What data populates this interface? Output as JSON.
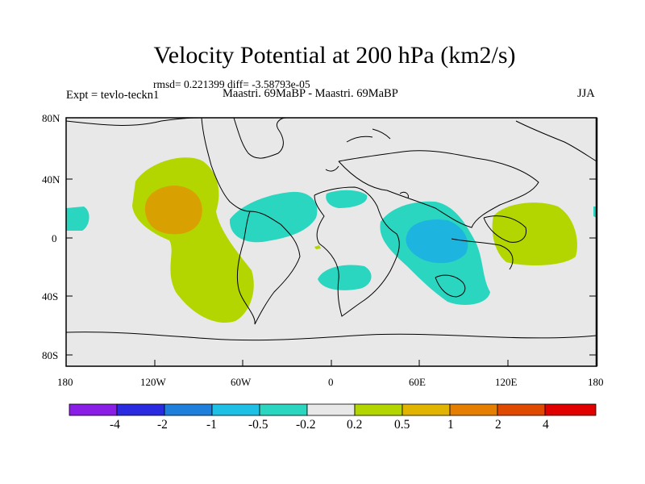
{
  "title": "Velocity Potential at 200 hPa (km2/s)",
  "stats": "rmsd= 0.221399 diff= -3.58793e-05",
  "experiment": "Expt = tevlo-teckn1",
  "case": "Maastri.  69MaBP - Maastri.  69MaBP",
  "season": "JJA",
  "y_axis_labels": [
    "80N",
    "40N",
    "0",
    "40S",
    "80S"
  ],
  "x_axis_labels": [
    "180",
    "120W",
    "60W",
    "0",
    "60E",
    "120E",
    "180"
  ],
  "colorbar": {
    "labels": [
      "-4",
      "-2",
      "-1",
      "-0.5",
      "-0.2",
      "0.2",
      "0.5",
      "1",
      "2",
      "4"
    ],
    "colors": [
      "#8a1ee6",
      "#2a2ae0",
      "#1e7fdc",
      "#1ec0e6",
      "#2ad6c0",
      "#e8e8e8",
      "#b4d600",
      "#e0b400",
      "#e67e00",
      "#e04a00",
      "#e00000"
    ]
  },
  "anomaly_colors": {
    "background": "#e8e8e8",
    "pos_0_2": "#b4d600",
    "pos_0_5": "#d8a000",
    "neg_0_2": "#2ad6c0",
    "neg_0_5": "#1eb4e0"
  }
}
